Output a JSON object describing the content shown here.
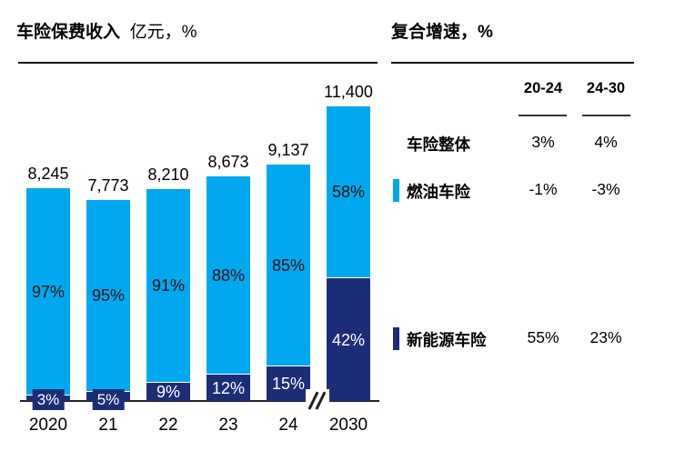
{
  "chart_data": {
    "type": "bar",
    "stacked": true,
    "title": "车险保费收入",
    "title_unit": "亿元，%",
    "ylabel": "",
    "xlabel": "",
    "categories": [
      "2020",
      "21",
      "22",
      "23",
      "24",
      "2030"
    ],
    "totals": [
      8245,
      7773,
      8210,
      8673,
      9137,
      11400
    ],
    "total_labels": [
      "8,245",
      "7,773",
      "8,210",
      "8,673",
      "9,137",
      "11,400"
    ],
    "series": [
      {
        "name": "燃油车险",
        "color": "#00A8EF",
        "shares_pct": [
          97,
          95,
          91,
          88,
          85,
          58
        ],
        "share_labels": [
          "97%",
          "95%",
          "91%",
          "88%",
          "85%",
          "58%"
        ]
      },
      {
        "name": "新能源车险",
        "color": "#1C2D78",
        "shares_pct": [
          3,
          5,
          9,
          12,
          15,
          42
        ],
        "share_labels": [
          "3%",
          "5%",
          "9%",
          "12%",
          "15%",
          "42%"
        ]
      }
    ],
    "axis_break_between": [
      "24",
      "2030"
    ],
    "ylim": [
      0,
      11400
    ],
    "grid": false,
    "legend_position": "right-table"
  },
  "growth_table": {
    "title": "复合增速，%",
    "columns": [
      "20-24",
      "24-30"
    ],
    "rows": [
      {
        "label": "车险整体",
        "marker_color": null,
        "values": [
          "3%",
          "4%"
        ]
      },
      {
        "label": "燃油车险",
        "marker_color": "#00A8EF",
        "values": [
          "-1%",
          "-3%"
        ]
      },
      {
        "label": "新能源车险",
        "marker_color": "#1C2D78",
        "values": [
          "55%",
          "23%"
        ]
      }
    ]
  },
  "colors": {
    "fuel_blue": "#00A8EF",
    "nev_navy": "#1C2D78",
    "axis": "#222222",
    "text": "#000000"
  }
}
